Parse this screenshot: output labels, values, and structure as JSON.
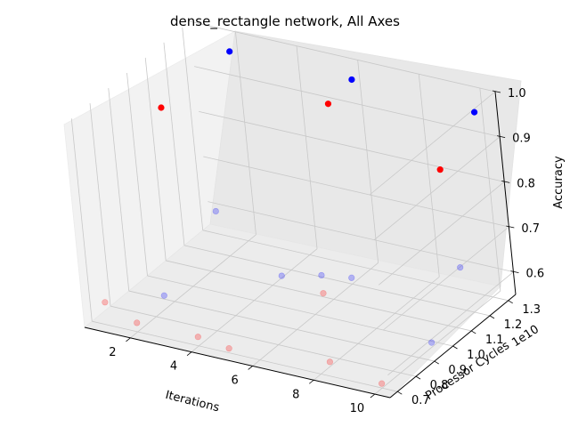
{
  "chart_data": {
    "type": "scatter",
    "projection": "3d",
    "title": "dense_rectangle network, All Axes",
    "xlabel": "Iterations",
    "ylabel": "Processor Cycles",
    "zlabel": "Accuracy",
    "y_offset_label": "1e10",
    "x_ticks": [
      "2",
      "4",
      "6",
      "8",
      "10"
    ],
    "y_ticks": [
      "0.7",
      "0.8",
      "0.9",
      "1.0",
      "1.1",
      "1.2",
      "1.3"
    ],
    "z_ticks": [
      "0.6",
      "0.7",
      "0.8",
      "0.9",
      "1.0"
    ],
    "xlim": [
      0.5,
      10.5
    ],
    "ylim": [
      0.66,
      1.34
    ],
    "zlim": [
      0.55,
      1.0
    ],
    "grid": true,
    "series": [
      {
        "color": "#0000ff",
        "points": [
          {
            "x": 2,
            "y": 1.3,
            "z": 0.97
          },
          {
            "x": 6,
            "y": 1.3,
            "z": 0.97
          },
          {
            "x": 10,
            "y": 1.3,
            "z": 0.96
          }
        ]
      },
      {
        "color": "#ff0000",
        "points": [
          {
            "x": 2,
            "y": 0.93,
            "z": 0.97
          },
          {
            "x": 6,
            "y": 1.17,
            "z": 0.96
          },
          {
            "x": 10,
            "y": 1.1,
            "z": 0.9
          }
        ]
      },
      {
        "color": "#0000ff",
        "alpha": 0.25,
        "points": [
          {
            "x": 1,
            "y": 1.3,
            "z": 0.6
          },
          {
            "x": 2,
            "y": 0.85,
            "z": 0.58
          },
          {
            "x": 5,
            "y": 1.0,
            "z": 0.62
          },
          {
            "x": 6,
            "y": 1.05,
            "z": 0.62
          },
          {
            "x": 7,
            "y": 1.05,
            "z": 0.63
          },
          {
            "x": 9,
            "y": 1.3,
            "z": 0.6
          },
          {
            "x": 10,
            "y": 0.97,
            "z": 0.56
          }
        ]
      },
      {
        "color": "#ff0000",
        "alpha": 0.25,
        "points": [
          {
            "x": 1,
            "y": 0.7,
            "z": 0.6
          },
          {
            "x": 2,
            "y": 0.7,
            "z": 0.57
          },
          {
            "x": 4,
            "y": 0.7,
            "z": 0.57
          },
          {
            "x": 5,
            "y": 0.7,
            "z": 0.56
          },
          {
            "x": 6,
            "y": 1.05,
            "z": 0.58
          },
          {
            "x": 8,
            "y": 0.75,
            "z": 0.56
          },
          {
            "x": 10,
            "y": 0.7,
            "z": 0.56
          }
        ]
      }
    ]
  }
}
